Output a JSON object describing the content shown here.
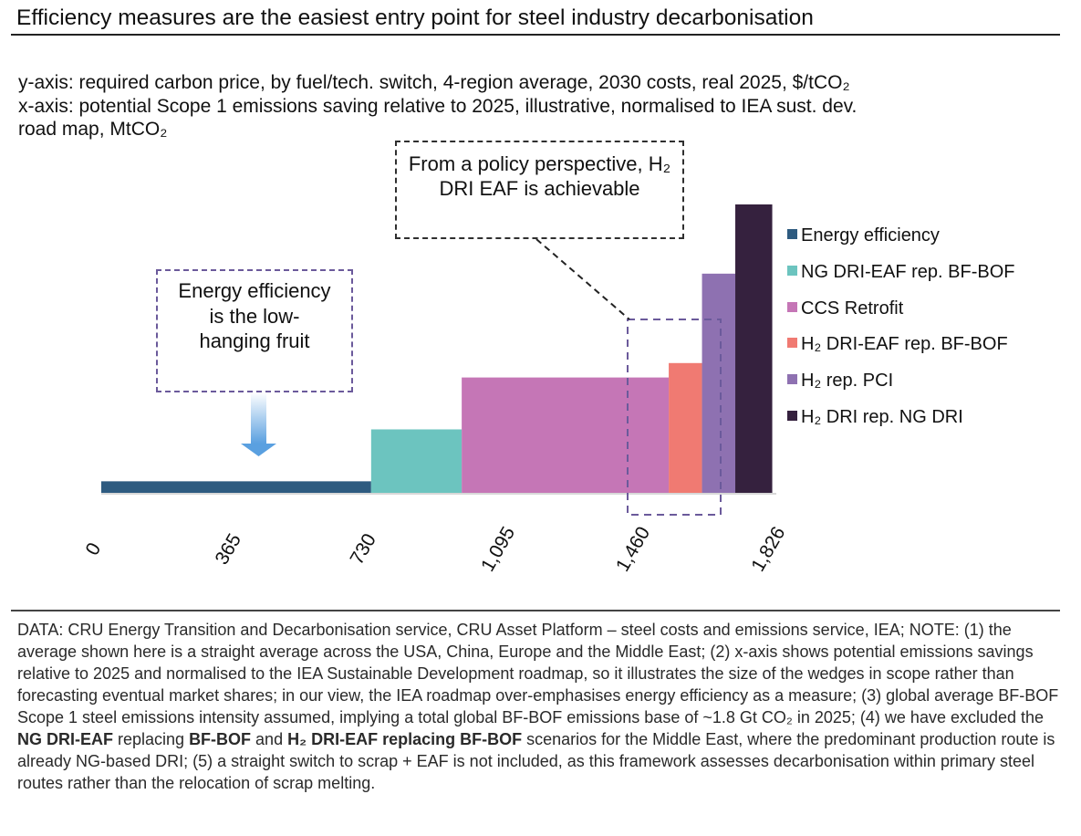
{
  "title": "Efficiency measures are the easiest entry point for steel industry decarbonisation",
  "axis_descriptions": {
    "y_line": "y-axis: required carbon price, by fuel/tech. switch, 4-region average, 2030 costs, real 2025, $/tCO₂",
    "x_line1": "x-axis: potential Scope 1 emissions saving relative to 2025, illustrative, normalised to IEA sust. dev.",
    "x_line2": "road map, MtCO₂"
  },
  "callouts": {
    "policy": "From a policy perspective, H₂ DRI EAF is achievable",
    "efficiency": "Energy efficiency is the low-hanging fruit"
  },
  "chart_data": {
    "type": "bar",
    "subtype": "marginal-abatement-cost-curve",
    "title": "",
    "xlabel": "",
    "ylabel": "",
    "x_ticks": [
      "0",
      "365",
      "730",
      "1,095",
      "1,460",
      "1,826"
    ],
    "x_tick_values": [
      0,
      365,
      730,
      1095,
      1460,
      1826
    ],
    "xlim": [
      0,
      1826
    ],
    "ylim": [
      0,
      100
    ],
    "grid": false,
    "y_tick_labels_shown": false,
    "legend_position": "right",
    "series": [
      {
        "name": "Energy efficiency",
        "x_start": 0,
        "x_end": 730,
        "value": 4,
        "color": "#2e5b80"
      },
      {
        "name": "NG DRI-EAF rep. BF-BOF",
        "x_start": 730,
        "x_end": 975,
        "value": 22,
        "color": "#6cc4bf"
      },
      {
        "name": "CCS Retrofit",
        "x_start": 975,
        "x_end": 1535,
        "value": 40,
        "color": "#c576b6"
      },
      {
        "name": "H₂ DRI-EAF rep. BF-BOF",
        "x_start": 1535,
        "x_end": 1625,
        "value": 45,
        "color": "#f07a72"
      },
      {
        "name": "H₂ rep. PCI",
        "x_start": 1625,
        "x_end": 1715,
        "value": 76,
        "color": "#8e71b1"
      },
      {
        "name": "H₂ DRI rep. NG DRI",
        "x_start": 1715,
        "x_end": 1815,
        "value": 100,
        "color": "#35213e"
      }
    ]
  },
  "footnote": {
    "part1": "DATA: CRU Energy Transition and Decarbonisation service, CRU Asset Platform – steel costs and emissions service, IEA; NOTE: (1) the average shown here is a straight average across the USA, China, Europe and the Middle East; (2) x-axis shows potential emissions savings relative to 2025 and normalised to the IEA Sustainable Development roadmap, so it illustrates the size of the wedges in scope rather than forecasting eventual market shares; in our view, the IEA roadmap over-emphasises energy efficiency as a measure; (3) global average BF-BOF Scope 1 steel emissions intensity assumed, implying a total global BF-BOF emissions base of ~1.8 Gt CO₂ in 2025; (4) we have excluded the ",
    "bold1": "NG DRI-EAF",
    "part2": " replacing ",
    "bold2": "BF-BOF",
    "part3": " and ",
    "bold3": "H₂ DRI-EAF replacing BF-BOF",
    "part4": " scenarios for the Middle East, where the predominant production route is already NG-based DRI; (5) a straight switch to scrap + EAF is not included, as this framework assesses decarbonisation within primary steel routes rather than the relocation of scrap melting."
  }
}
